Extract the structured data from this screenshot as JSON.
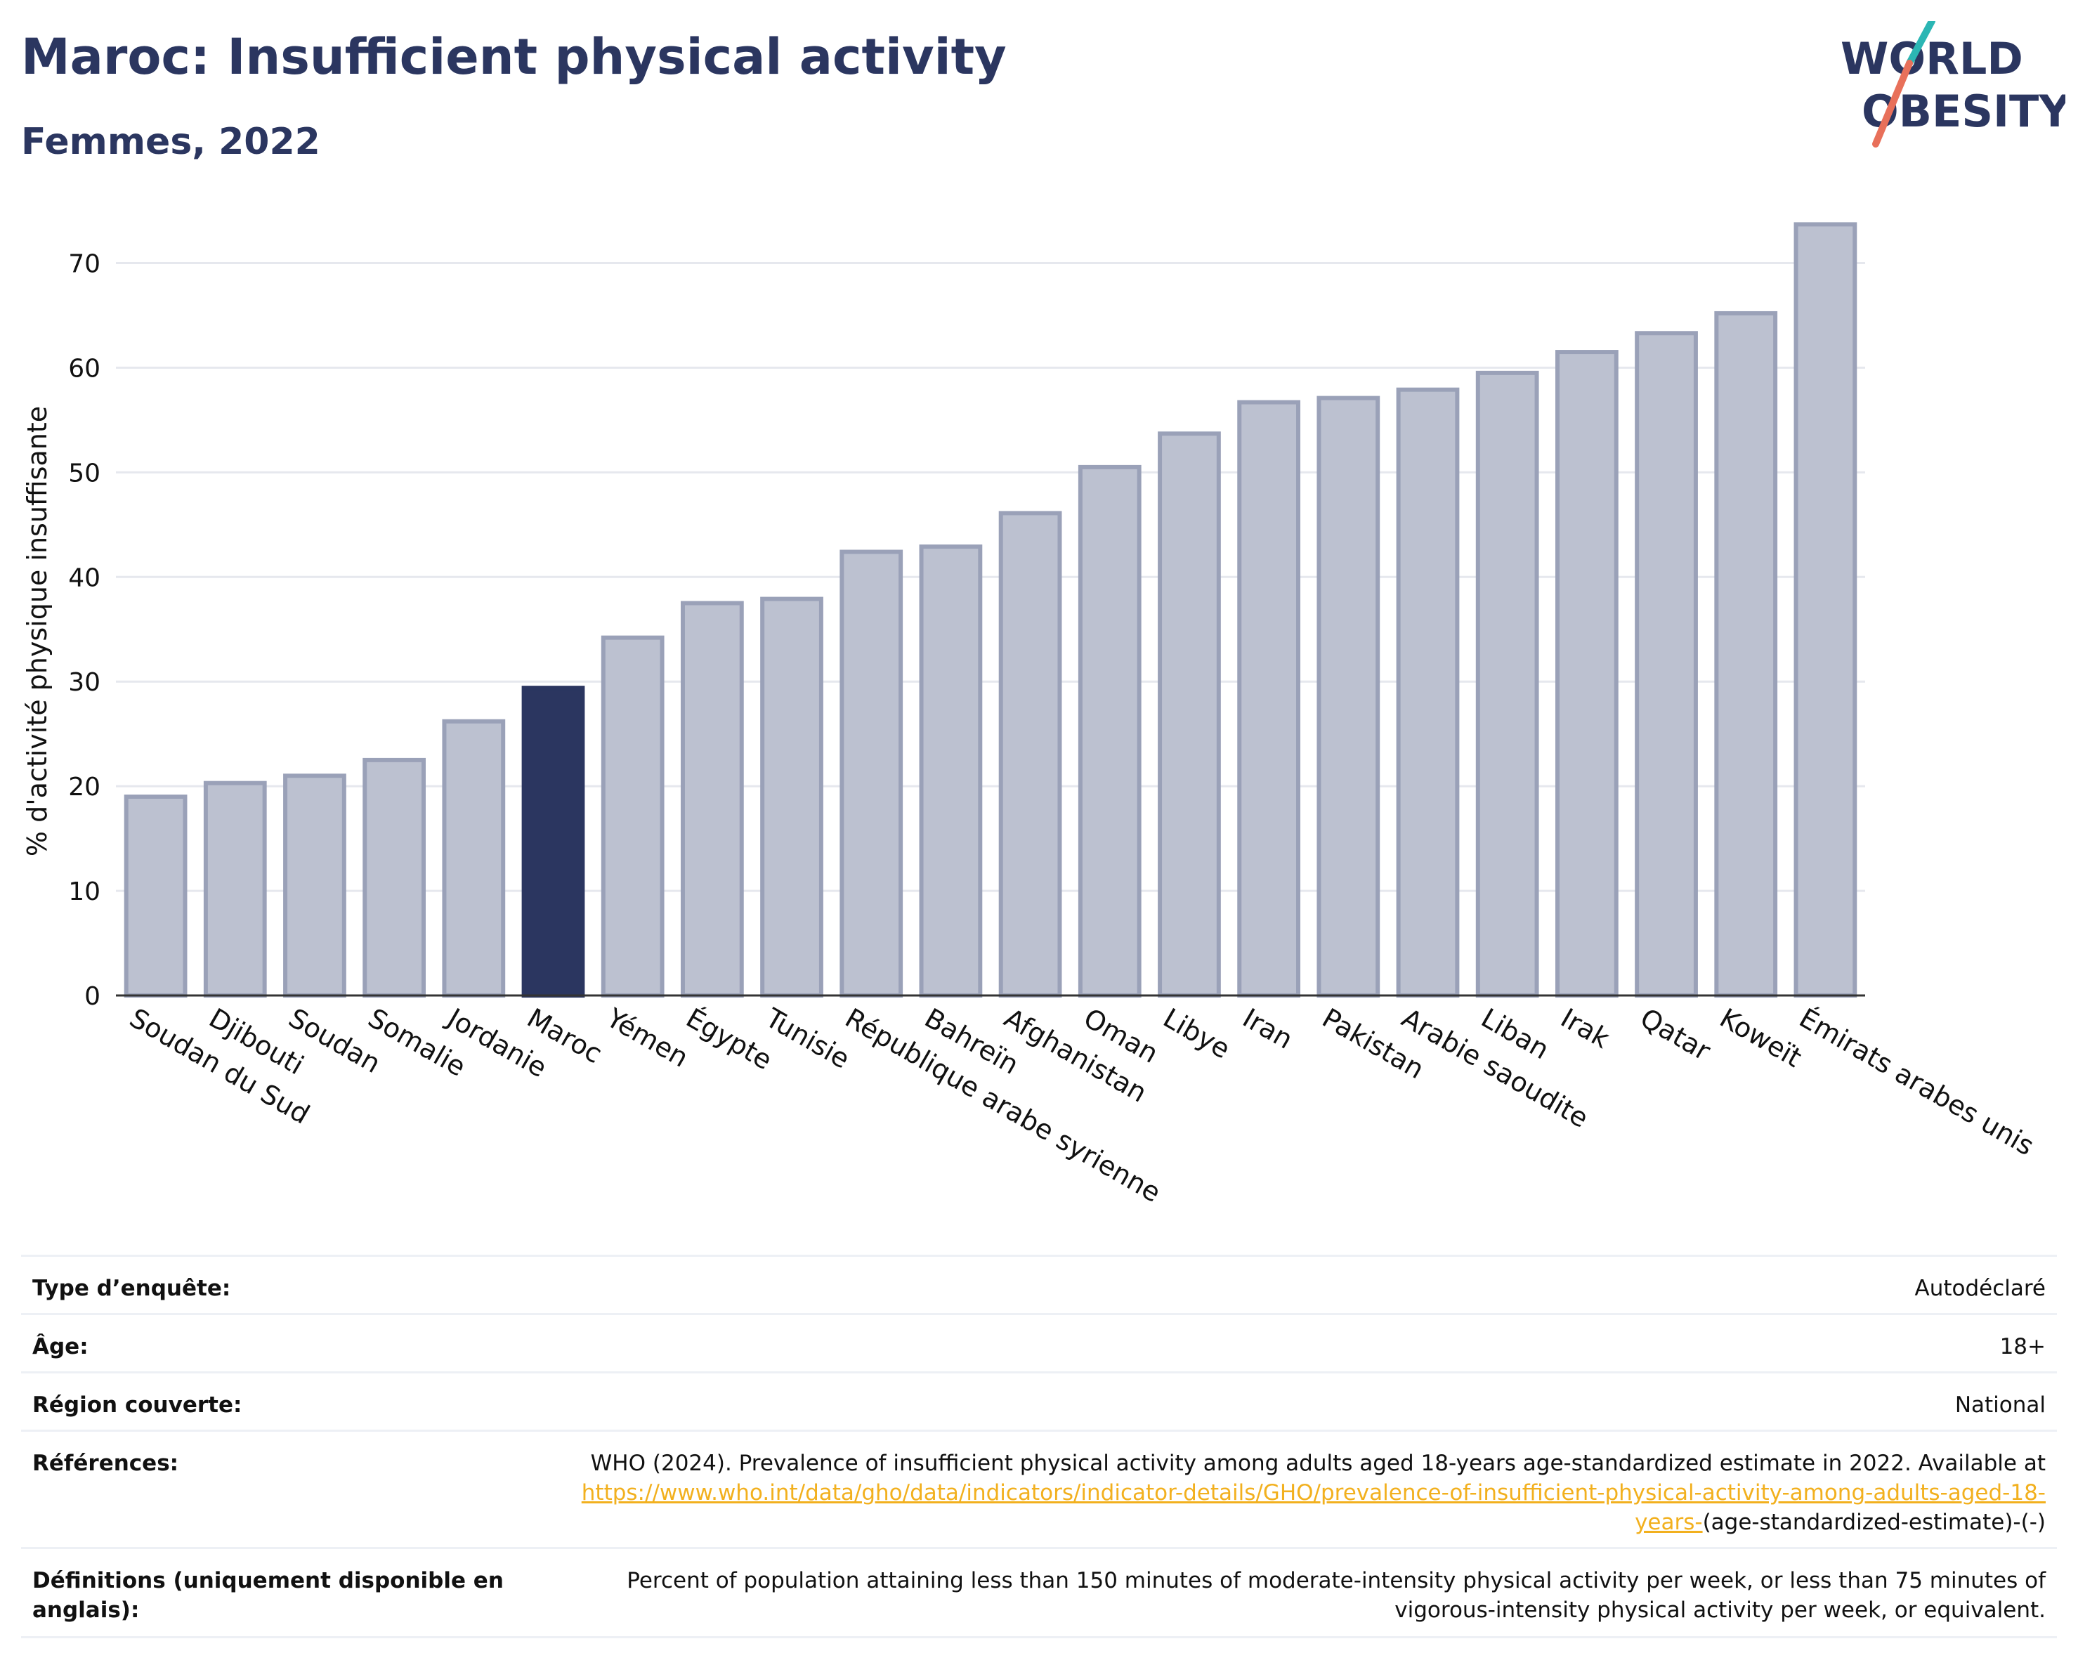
{
  "header": {
    "title": "Maroc: Insufficient physical activity",
    "subtitle": "Femmes, 2022"
  },
  "logo": {
    "line1": "WORLD",
    "line2": "OBESITY",
    "icon": "slash-logo-icon"
  },
  "colors": {
    "accent": "#2b3660",
    "bar": "#bcc1d0",
    "bar_edge": "#9aa1b8",
    "highlight": "#2b3660",
    "link": "#f2b01e"
  },
  "chart_data": {
    "type": "bar",
    "title": "Maroc: Insufficient physical activity",
    "subtitle": "Femmes, 2022",
    "ylabel": "% d'activité physique insuffisante",
    "xlabel": "",
    "ylim": [
      0,
      75
    ],
    "yticks": [
      0,
      10,
      20,
      30,
      40,
      50,
      60,
      70
    ],
    "grid": true,
    "highlight": "Maroc",
    "categories": [
      "Soudan du Sud",
      "Djibouti",
      "Soudan",
      "Somalie",
      "Jordanie",
      "Maroc",
      "Yémen",
      "Égypte",
      "Tunisie",
      "République arabe syrienne",
      "Bahreïn",
      "Afghanistan",
      "Oman",
      "Libye",
      "Iran",
      "Pakistan",
      "Arabie saoudite",
      "Liban",
      "Irak",
      "Qatar",
      "Koweït",
      "Émirats arabes unis"
    ],
    "values": [
      19.0,
      20.3,
      21.0,
      22.5,
      26.2,
      29.4,
      34.2,
      37.5,
      37.9,
      42.4,
      42.9,
      46.1,
      50.5,
      53.7,
      56.7,
      57.1,
      57.9,
      59.5,
      61.5,
      63.3,
      65.2,
      73.7
    ]
  },
  "info": {
    "survey_label": "Type d’enquête:",
    "survey_value": "Autodéclaré",
    "age_label": "Âge:",
    "age_value": "18+",
    "region_label": "Région couverte:",
    "region_value": "National",
    "ref_label": "Références:",
    "ref_text": "WHO (2024). Prevalence of insufficient physical activity among adults aged 18-years age-standardized estimate in 2022. Available at",
    "ref_link": "https://www.who.int/data/gho/data/indicators/indicator-details/GHO/prevalence-of-insufficient-physical-activity-among-adults-aged-18-years-",
    "ref_suffix": "(age-standardized-estimate)-(-)",
    "def_label": "Définitions (uniquement disponible en anglais):",
    "def_value": "Percent of population attaining less than 150 minutes of moderate-intensity physical activity per week, or less than 75 minutes of vigorous-intensity physical activity per week, or equivalent."
  }
}
